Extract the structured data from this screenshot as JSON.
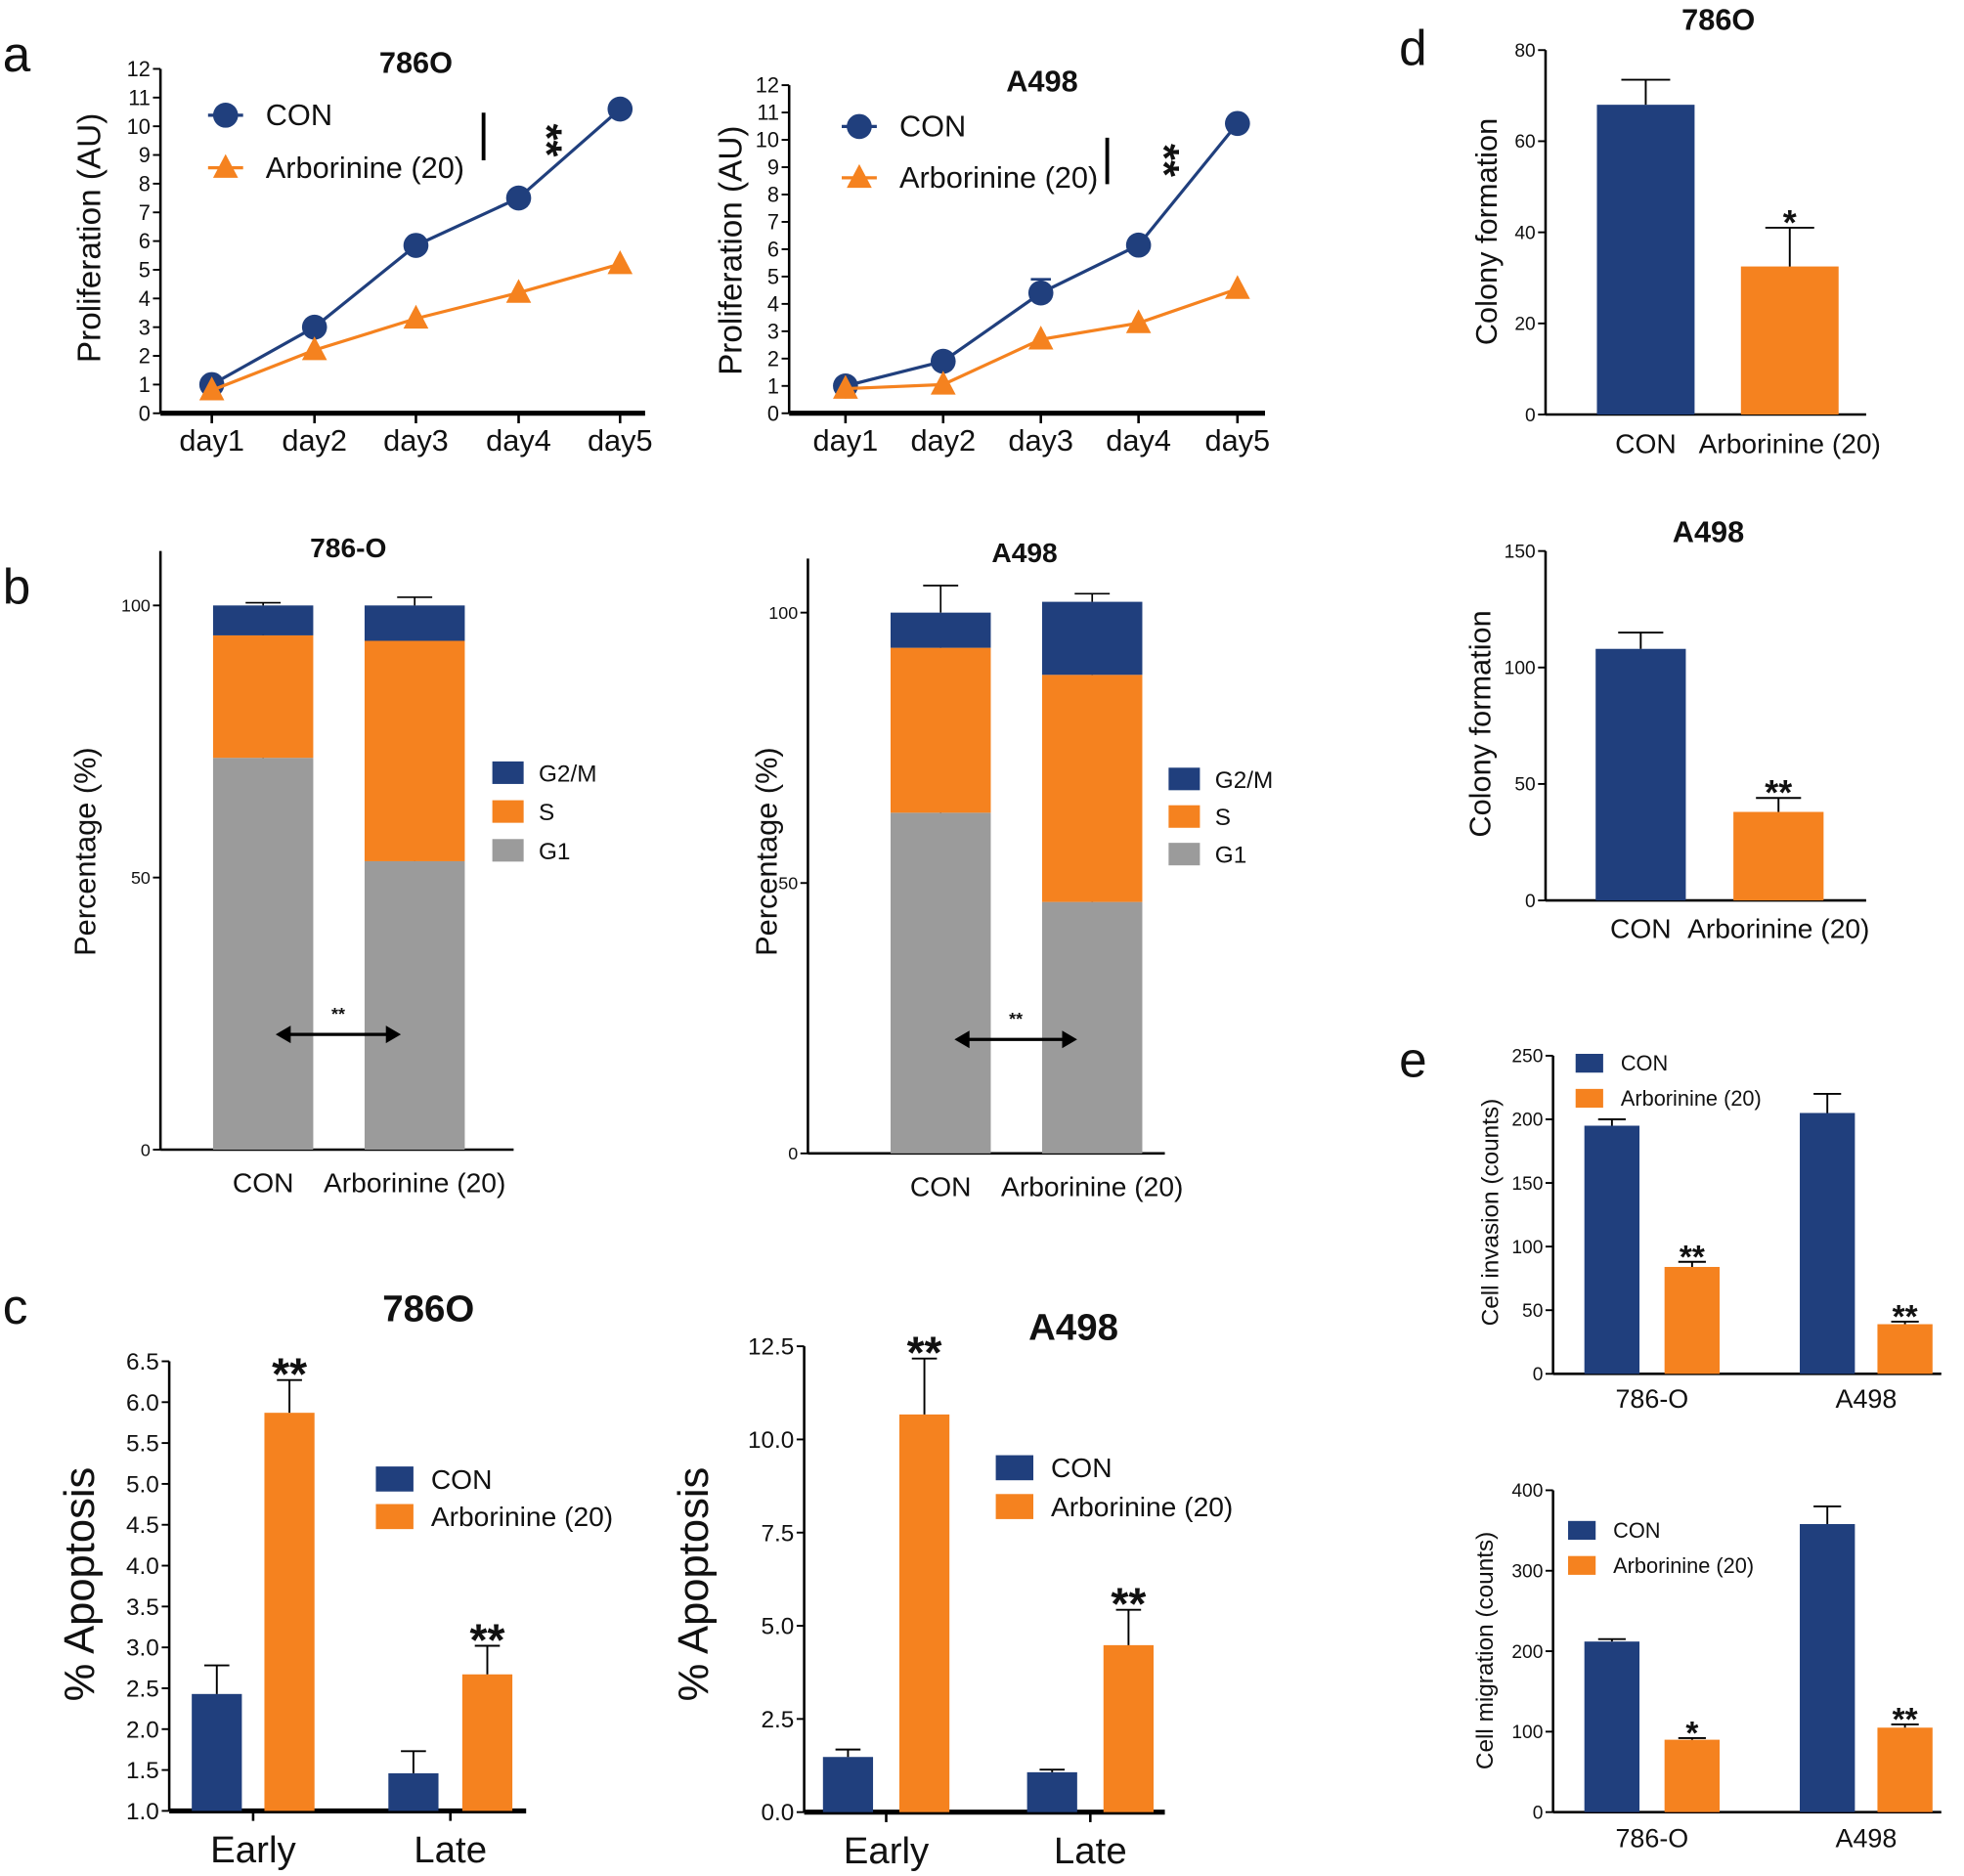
{
  "panel_labels": [
    "a",
    "b",
    "c",
    "d",
    "e"
  ],
  "colors": {
    "con": "#203f7d",
    "arb": "#f5821f",
    "g1": "#9b9b9b",
    "axis": "#000000"
  },
  "chart_data": [
    {
      "type": "line",
      "title": "786O",
      "ylabel": "Proliferation (AU)",
      "ylim": [
        0,
        12
      ],
      "yticks": [
        "0",
        "1",
        "2",
        "3",
        "4",
        "5",
        "6",
        "7",
        "8",
        "9",
        "10",
        "11",
        "12"
      ],
      "categories": [
        "day1",
        "day2",
        "day3",
        "day4",
        "day5"
      ],
      "series": [
        {
          "name": "CON",
          "values": [
            1.0,
            3.0,
            5.85,
            7.5,
            10.6
          ],
          "errors": [
            0,
            0,
            0,
            0,
            0
          ],
          "marker": "circle",
          "color": "#203f7d"
        },
        {
          "name": "Arborinine (20)",
          "values": [
            0.8,
            2.2,
            3.3,
            4.2,
            5.2
          ],
          "errors": [
            0,
            0,
            0,
            0,
            0
          ],
          "marker": "triangle",
          "color": "#f5821f"
        }
      ],
      "significance": "**",
      "legend": "top-left"
    },
    {
      "type": "line",
      "title": "A498",
      "ylabel": "Proliferation (AU)",
      "ylim": [
        0,
        12
      ],
      "yticks": [
        "0",
        "1",
        "2",
        "3",
        "4",
        "5",
        "6",
        "7",
        "8",
        "9",
        "10",
        "11",
        "12"
      ],
      "categories": [
        "day1",
        "day2",
        "day3",
        "day4",
        "day5"
      ],
      "series": [
        {
          "name": "CON",
          "values": [
            1.0,
            1.9,
            4.4,
            6.15,
            10.6
          ],
          "errors": [
            0,
            0,
            0.5,
            0,
            0
          ],
          "marker": "circle",
          "color": "#203f7d"
        },
        {
          "name": "Arborinine (20)",
          "values": [
            0.9,
            1.05,
            2.7,
            3.3,
            4.55
          ],
          "errors": [
            0,
            0,
            0,
            0,
            0
          ],
          "marker": "triangle",
          "color": "#f5821f"
        }
      ],
      "significance": "**",
      "legend": "top-left"
    },
    {
      "type": "stacked-bar",
      "title": "786-O",
      "ylabel": "Percentage (%)",
      "ylim": [
        0,
        110
      ],
      "yticks": [
        "0",
        "50",
        "100"
      ],
      "ytick_values": [
        0,
        50,
        100
      ],
      "categories": [
        "CON",
        "Arborinine (20)"
      ],
      "series": [
        {
          "name": "G1",
          "values": [
            72,
            53
          ],
          "errors": [
            1,
            2
          ],
          "color": "#9b9b9b"
        },
        {
          "name": "S",
          "values": [
            22.5,
            40.5
          ],
          "errors": [
            1,
            0.5
          ],
          "color": "#f5821f"
        },
        {
          "name": "G2/M",
          "values": [
            5.5,
            6.5
          ],
          "errors": [
            0.5,
            1.5
          ],
          "color": "#203f7d"
        }
      ],
      "significance": "**",
      "legend": "right"
    },
    {
      "type": "stacked-bar",
      "title": "A498",
      "ylabel": "Percentage (%)",
      "ylim": [
        0,
        110
      ],
      "yticks": [
        "0",
        "50",
        "100"
      ],
      "ytick_values": [
        0,
        50,
        100
      ],
      "categories": [
        "CON",
        "Arborinine (20)"
      ],
      "series": [
        {
          "name": "G1",
          "values": [
            63,
            46.5
          ],
          "errors": [
            3,
            2.5
          ],
          "color": "#9b9b9b"
        },
        {
          "name": "S",
          "values": [
            30.5,
            42
          ],
          "errors": [
            1,
            2
          ],
          "color": "#f5821f"
        },
        {
          "name": "G2/M",
          "values": [
            6.5,
            13.5
          ],
          "errors": [
            5,
            1.5
          ],
          "color": "#203f7d"
        }
      ],
      "significance": "**",
      "legend": "right"
    },
    {
      "type": "bar",
      "title": "786O",
      "ylabel": "% Apoptosis",
      "ylim": [
        1.0,
        6.5
      ],
      "yticks": [
        "1.0",
        "1.5",
        "2.0",
        "2.5",
        "3.0",
        "3.5",
        "4.0",
        "4.5",
        "5.0",
        "5.5",
        "6.0",
        "6.5"
      ],
      "ytick_values": [
        1.0,
        1.5,
        2.0,
        2.5,
        3.0,
        3.5,
        4.0,
        4.5,
        5.0,
        5.5,
        6.0,
        6.5
      ],
      "categories": [
        "Early",
        "Late"
      ],
      "series": [
        {
          "name": "CON",
          "values": [
            2.43,
            1.46
          ],
          "errors": [
            0.35,
            0.27
          ],
          "sig": [
            "",
            ""
          ],
          "color": "#203f7d"
        },
        {
          "name": "Arborinine (20)",
          "values": [
            5.87,
            2.67
          ],
          "errors": [
            0.4,
            0.35
          ],
          "sig": [
            "**",
            "**"
          ],
          "color": "#f5821f"
        }
      ],
      "legend": "right"
    },
    {
      "type": "bar",
      "title": "A498",
      "ylabel": "% Apoptosis",
      "ylim": [
        0,
        12.5
      ],
      "yticks": [
        "0.0",
        "2.5",
        "5.0",
        "7.5",
        "10.0",
        "12.5"
      ],
      "ytick_values": [
        0,
        2.5,
        5,
        7.5,
        10,
        12.5
      ],
      "categories": [
        "Early",
        "Late"
      ],
      "series": [
        {
          "name": "CON",
          "values": [
            1.48,
            1.07
          ],
          "errors": [
            0.2,
            0.07
          ],
          "sig": [
            "",
            ""
          ],
          "color": "#203f7d"
        },
        {
          "name": "Arborinine (20)",
          "values": [
            10.67,
            4.48
          ],
          "errors": [
            1.5,
            0.95
          ],
          "sig": [
            "**",
            "**"
          ],
          "color": "#f5821f"
        }
      ],
      "legend": "right"
    },
    {
      "type": "bar",
      "title": "786O",
      "ylabel": "Colony formation",
      "ylim": [
        0,
        80
      ],
      "yticks": [
        "0",
        "20",
        "40",
        "60",
        "80"
      ],
      "ytick_values": [
        0,
        20,
        40,
        60,
        80
      ],
      "categories": [
        "CON",
        "Arborinine (20)"
      ],
      "series": [
        {
          "values": [
            68,
            32.5
          ],
          "errors": [
            5.5,
            8.5
          ],
          "sig": [
            "",
            "*"
          ],
          "colors": [
            "#203f7d",
            "#f5821f"
          ]
        }
      ]
    },
    {
      "type": "bar",
      "title": "A498",
      "ylabel": "Colony formation",
      "ylim": [
        0,
        150
      ],
      "yticks": [
        "0",
        "50",
        "100",
        "150"
      ],
      "ytick_values": [
        0,
        50,
        100,
        150
      ],
      "categories": [
        "CON",
        "Arborinine (20)"
      ],
      "series": [
        {
          "values": [
            108,
            38
          ],
          "errors": [
            7,
            6
          ],
          "sig": [
            "",
            "**"
          ],
          "colors": [
            "#203f7d",
            "#f5821f"
          ]
        }
      ]
    },
    {
      "type": "bar",
      "title": "",
      "ylabel": "Cell invasion (counts)",
      "ylim": [
        0,
        250
      ],
      "yticks": [
        "0",
        "50",
        "100",
        "150",
        "200",
        "250"
      ],
      "ytick_values": [
        0,
        50,
        100,
        150,
        200,
        250
      ],
      "categories": [
        "786-O",
        "A498"
      ],
      "series": [
        {
          "name": "CON",
          "values": [
            195,
            205
          ],
          "errors": [
            5,
            15
          ],
          "sig": [
            "",
            ""
          ],
          "color": "#203f7d"
        },
        {
          "name": "Arborinine (20)",
          "values": [
            84,
            39
          ],
          "errors": [
            4,
            2
          ],
          "sig": [
            "**",
            "**"
          ],
          "color": "#f5821f"
        }
      ],
      "legend": "top-left"
    },
    {
      "type": "bar",
      "title": "",
      "ylabel": "Cell migration (counts)",
      "ylim": [
        0,
        400
      ],
      "yticks": [
        "0",
        "100",
        "200",
        "300",
        "400"
      ],
      "ytick_values": [
        0,
        100,
        200,
        300,
        400
      ],
      "categories": [
        "786-O",
        "A498"
      ],
      "series": [
        {
          "name": "CON",
          "values": [
            212,
            358
          ],
          "errors": [
            3,
            22
          ],
          "sig": [
            "",
            ""
          ],
          "color": "#203f7d"
        },
        {
          "name": "Arborinine (20)",
          "values": [
            90,
            105
          ],
          "errors": [
            2,
            4
          ],
          "sig": [
            "*",
            "**"
          ],
          "color": "#f5821f"
        }
      ],
      "legend": "top-left"
    }
  ]
}
